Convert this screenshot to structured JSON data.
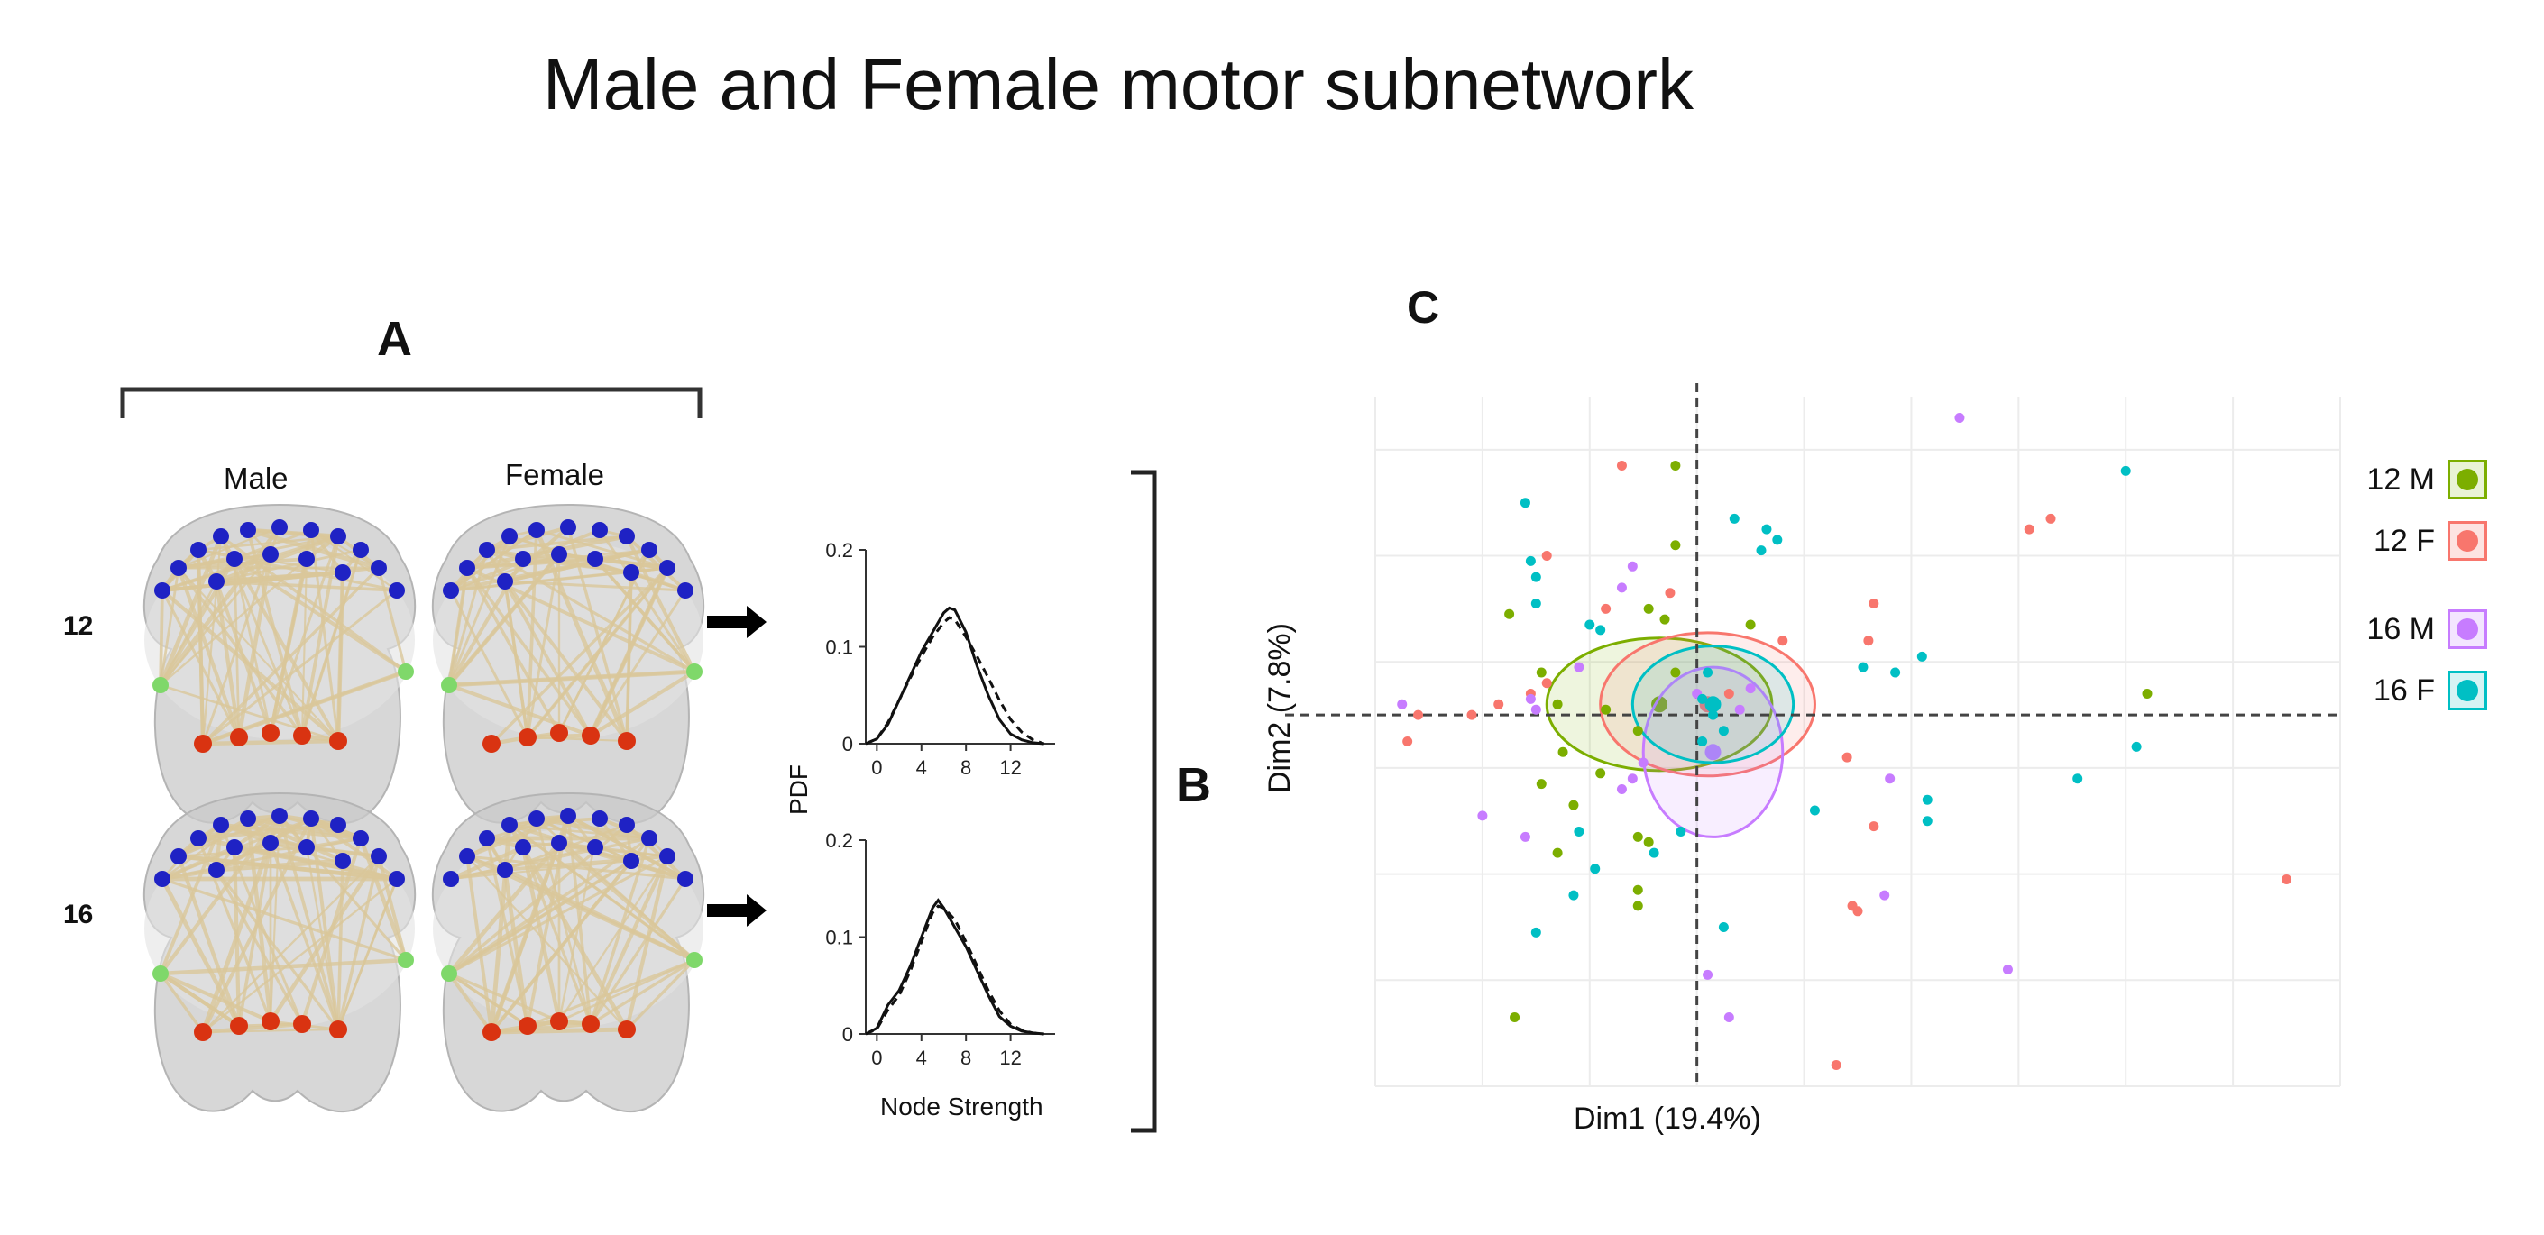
{
  "title": "Male and Female motor subnetwork",
  "panels": {
    "a": "A",
    "b": "B",
    "c": "C"
  },
  "panel_a": {
    "columns": [
      "Male",
      "Female"
    ],
    "rows": [
      "12",
      "16"
    ]
  },
  "colors": {
    "green": "#7cae00",
    "red": "#f8766d",
    "purple": "#c77cff",
    "teal": "#00bfc4",
    "node_blue": "#1f22c4",
    "node_red": "#d93311",
    "node_green": "#7fd86a",
    "edge": "#d9c79a",
    "brain": "#c9c9c9"
  },
  "chart_data": [
    {
      "type": "line",
      "title": "12",
      "xlabel": "Node Strength",
      "ylabel": "PDF",
      "xticks": [
        "0",
        "4",
        "8",
        "12"
      ],
      "yticks": [
        "0",
        "0.1",
        "0.2"
      ],
      "xlim": [
        -1,
        16
      ],
      "ylim": [
        0,
        0.2
      ],
      "x": [
        -1,
        0,
        1,
        2,
        3,
        4,
        5,
        6,
        6.5,
        7,
        8,
        9,
        10,
        11,
        12,
        13,
        14,
        15
      ],
      "series": [
        {
          "name": "Male",
          "style": "solid",
          "values": [
            0,
            0.005,
            0.02,
            0.045,
            0.07,
            0.095,
            0.115,
            0.135,
            0.14,
            0.138,
            0.115,
            0.08,
            0.05,
            0.025,
            0.01,
            0.004,
            0.001,
            0
          ]
        },
        {
          "name": "Female",
          "style": "dashed",
          "values": [
            0,
            0.005,
            0.022,
            0.045,
            0.068,
            0.09,
            0.11,
            0.125,
            0.13,
            0.128,
            0.11,
            0.09,
            0.068,
            0.045,
            0.025,
            0.012,
            0.004,
            0
          ]
        }
      ]
    },
    {
      "type": "line",
      "title": "16",
      "xlabel": "Node Strength",
      "ylabel": "PDF",
      "xticks": [
        "0",
        "4",
        "8",
        "12"
      ],
      "yticks": [
        "0",
        "0.1",
        "0.2"
      ],
      "xlim": [
        -1,
        16
      ],
      "ylim": [
        0,
        0.2
      ],
      "x": [
        -1,
        0,
        1,
        2,
        3,
        4,
        5,
        5.5,
        6,
        7,
        8,
        9,
        10,
        11,
        12,
        13,
        14,
        15
      ],
      "series": [
        {
          "name": "Male",
          "style": "solid",
          "values": [
            0,
            0.006,
            0.03,
            0.045,
            0.07,
            0.1,
            0.13,
            0.138,
            0.13,
            0.11,
            0.09,
            0.065,
            0.04,
            0.018,
            0.008,
            0.003,
            0.001,
            0
          ]
        },
        {
          "name": "Female",
          "style": "dashed",
          "values": [
            0,
            0.005,
            0.025,
            0.04,
            0.065,
            0.095,
            0.125,
            0.132,
            0.13,
            0.118,
            0.095,
            0.07,
            0.045,
            0.024,
            0.01,
            0.004,
            0.001,
            0
          ]
        }
      ]
    },
    {
      "type": "scatter",
      "title": "C",
      "xlabel": "Dim1 (19.4%)",
      "ylabel": "Dim2 (7.8%)",
      "xlim": [
        -6,
        12
      ],
      "ylim": [
        -7,
        6
      ],
      "series": [
        {
          "name": "12 M",
          "color": "green",
          "points": [
            [
              -0.4,
              4.7
            ],
            [
              -0.4,
              3.2
            ],
            [
              -0.9,
              2.0
            ],
            [
              -3.5,
              1.9
            ],
            [
              -0.6,
              1.8
            ],
            [
              1.0,
              1.7
            ],
            [
              -2.9,
              0.8
            ],
            [
              -2.6,
              0.2
            ],
            [
              -1.7,
              0.1
            ],
            [
              -1.1,
              -0.3
            ],
            [
              -2.5,
              -0.7
            ],
            [
              -2.9,
              -1.3
            ],
            [
              -1.8,
              -1.1
            ],
            [
              -2.3,
              -1.7
            ],
            [
              -2.6,
              -2.6
            ],
            [
              -1.1,
              -2.3
            ],
            [
              -0.9,
              -2.4
            ],
            [
              -1.1,
              -3.3
            ],
            [
              -1.1,
              -3.6
            ],
            [
              -3.4,
              -5.7
            ],
            [
              8.4,
              0.4
            ],
            [
              -0.4,
              0.8
            ]
          ]
        },
        {
          "name": "12 F",
          "color": "red",
          "points": [
            [
              -1.4,
              4.7
            ],
            [
              6.2,
              3.5
            ],
            [
              6.6,
              3.7
            ],
            [
              -2.8,
              3.0
            ],
            [
              -0.5,
              2.3
            ],
            [
              -1.7,
              2.0
            ],
            [
              3.3,
              2.1
            ],
            [
              3.2,
              1.4
            ],
            [
              1.6,
              1.4
            ],
            [
              -3.7,
              0.2
            ],
            [
              -4.2,
              0.0
            ],
            [
              -5.2,
              0.0
            ],
            [
              -5.4,
              -0.5
            ],
            [
              -2.8,
              0.6
            ],
            [
              -3.1,
              0.4
            ],
            [
              2.8,
              -0.8
            ],
            [
              3.3,
              -2.1
            ],
            [
              2.9,
              -3.6
            ],
            [
              3.0,
              -3.7
            ],
            [
              11.0,
              -3.1
            ],
            [
              2.6,
              -6.6
            ],
            [
              0.6,
              0.4
            ]
          ]
        },
        {
          "name": "16 M",
          "color": "purple",
          "points": [
            [
              4.9,
              5.6
            ],
            [
              -1.2,
              2.8
            ],
            [
              -1.4,
              2.4
            ],
            [
              -2.2,
              0.9
            ],
            [
              -3.1,
              0.3
            ],
            [
              -3.0,
              0.1
            ],
            [
              -5.5,
              0.2
            ],
            [
              -4.0,
              -1.9
            ],
            [
              -3.2,
              -2.3
            ],
            [
              -1.4,
              -1.4
            ],
            [
              -1.2,
              -1.2
            ],
            [
              0.0,
              0.4
            ],
            [
              0.8,
              0.1
            ],
            [
              1.0,
              0.5
            ],
            [
              3.6,
              -1.2
            ],
            [
              3.5,
              -3.4
            ],
            [
              0.2,
              -4.9
            ],
            [
              0.6,
              -5.7
            ],
            [
              5.8,
              -4.8
            ],
            [
              -1.0,
              -0.9
            ]
          ]
        },
        {
          "name": "16 F",
          "color": "teal",
          "points": [
            [
              -3.2,
              4.0
            ],
            [
              -3.1,
              2.9
            ],
            [
              -3.0,
              2.6
            ],
            [
              -3.0,
              2.1
            ],
            [
              0.7,
              3.7
            ],
            [
              1.3,
              3.5
            ],
            [
              1.5,
              3.3
            ],
            [
              1.2,
              3.1
            ],
            [
              -2.0,
              1.7
            ],
            [
              -1.8,
              1.6
            ],
            [
              3.1,
              0.9
            ],
            [
              3.7,
              0.8
            ],
            [
              4.2,
              1.1
            ],
            [
              0.2,
              0.8
            ],
            [
              0.5,
              -0.3
            ],
            [
              0.1,
              -0.5
            ],
            [
              2.2,
              -1.8
            ],
            [
              4.3,
              -1.6
            ],
            [
              4.3,
              -2.0
            ],
            [
              7.1,
              -1.2
            ],
            [
              8.2,
              -0.6
            ],
            [
              8.0,
              4.6
            ],
            [
              -2.3,
              -3.4
            ],
            [
              -1.9,
              -2.9
            ],
            [
              -0.3,
              -2.2
            ],
            [
              -0.8,
              -2.6
            ],
            [
              -3.0,
              -4.1
            ],
            [
              0.5,
              -4.0
            ],
            [
              0.3,
              0.0
            ],
            [
              0.1,
              0.3
            ],
            [
              -2.2,
              -2.2
            ]
          ]
        }
      ],
      "ellipses": [
        {
          "series": "12 M",
          "cx": -0.7,
          "cy": 0.2,
          "rx": 2.1,
          "ry": 1.25
        },
        {
          "series": "12 F",
          "cx": 0.2,
          "cy": 0.2,
          "rx": 2.0,
          "ry": 1.35
        },
        {
          "series": "16 M",
          "cx": 0.3,
          "cy": -0.7,
          "rx": 1.3,
          "ry": 1.6
        },
        {
          "series": "16 F",
          "cx": 0.3,
          "cy": 0.2,
          "rx": 1.5,
          "ry": 1.1
        }
      ],
      "crosshair": [
        0,
        0
      ],
      "legend": [
        {
          "label": "12 M",
          "color": "green"
        },
        {
          "label": "12 F",
          "color": "red"
        },
        {
          "label": "16 M",
          "color": "purple"
        },
        {
          "label": "16 F",
          "color": "teal"
        }
      ]
    }
  ]
}
